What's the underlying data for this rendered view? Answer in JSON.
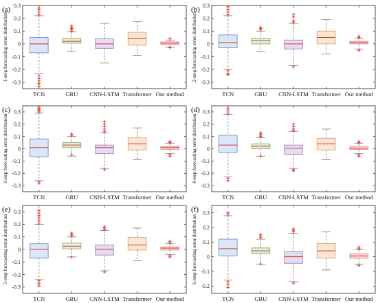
{
  "chart_data": [
    {
      "type": "box",
      "panel_label": "(a)",
      "ylabel": "1-step forecasting error distribution",
      "ylim": [
        -0.35,
        0.3
      ],
      "yticks": [
        -0.3,
        -0.2,
        -0.1,
        0,
        0.1,
        0.2,
        0.3
      ],
      "categories": [
        "TCN",
        "GRU",
        "CNN-LSTM",
        "Transformer",
        "Our method"
      ],
      "boxes": [
        {
          "category": "TCN",
          "whisker_low": -0.23,
          "q1": -0.07,
          "median": 0.0,
          "q3": 0.05,
          "whisker_high": 0.22,
          "outliers_low": [
            -0.25,
            -0.27,
            -0.29,
            -0.31,
            -0.33
          ],
          "outliers_high": [
            0.23,
            0.25,
            0.27,
            0.28
          ]
        },
        {
          "category": "GRU",
          "whisker_low": -0.06,
          "q1": 0.005,
          "median": 0.02,
          "q3": 0.045,
          "whisker_high": 0.095,
          "outliers_low": [],
          "outliers_high": [
            0.1,
            0.11,
            0.12,
            0.13,
            0.14
          ]
        },
        {
          "category": "CNN-LSTM",
          "whisker_low": -0.15,
          "q1": -0.035,
          "median": 0.0,
          "q3": 0.04,
          "whisker_high": 0.16,
          "outliers_low": [],
          "outliers_high": []
        },
        {
          "category": "Transformer",
          "whisker_low": -0.09,
          "q1": -0.01,
          "median": 0.04,
          "q3": 0.09,
          "whisker_high": 0.175,
          "outliers_low": [],
          "outliers_high": []
        },
        {
          "category": "Our method",
          "whisker_low": -0.025,
          "q1": -0.005,
          "median": 0.005,
          "q3": 0.015,
          "whisker_high": 0.03,
          "outliers_low": [
            -0.03
          ],
          "outliers_high": [
            0.04
          ]
        }
      ]
    },
    {
      "type": "box",
      "panel_label": "(b)",
      "ylabel": "2-step forecasting error distribution",
      "ylim": [
        -0.35,
        0.3
      ],
      "yticks": [
        -0.3,
        -0.2,
        -0.1,
        0,
        0.1,
        0.2,
        0.3
      ],
      "categories": [
        "TCN",
        "GRU",
        "CNN-LSTM",
        "Transformer",
        "Our method"
      ],
      "boxes": [
        {
          "category": "TCN",
          "whisker_low": -0.2,
          "q1": -0.03,
          "median": 0.01,
          "q3": 0.07,
          "whisker_high": 0.22,
          "outliers_low": [
            -0.21,
            -0.23,
            -0.24
          ],
          "outliers_high": [
            0.23,
            0.25,
            0.27,
            0.29
          ]
        },
        {
          "category": "GRU",
          "whisker_low": -0.06,
          "q1": 0.0,
          "median": 0.025,
          "q3": 0.045,
          "whisker_high": 0.1,
          "outliers_low": [],
          "outliers_high": [
            0.11,
            0.12,
            0.13
          ]
        },
        {
          "category": "CNN-LSTM",
          "whisker_low": -0.17,
          "q1": -0.04,
          "median": 0.0,
          "q3": 0.03,
          "whisker_high": 0.16,
          "outliers_low": [
            -0.18
          ],
          "outliers_high": [
            0.17,
            0.18,
            0.21,
            0.23
          ]
        },
        {
          "category": "Transformer",
          "whisker_low": -0.08,
          "q1": 0.0,
          "median": 0.05,
          "q3": 0.1,
          "whisker_high": 0.19,
          "outliers_low": [],
          "outliers_high": []
        },
        {
          "category": "Our method",
          "whisker_low": -0.04,
          "q1": 0.0,
          "median": 0.01,
          "q3": 0.02,
          "whisker_high": 0.045,
          "outliers_low": [
            -0.05
          ],
          "outliers_high": [
            0.05,
            0.06
          ]
        }
      ]
    },
    {
      "type": "box",
      "panel_label": "(c)",
      "ylabel": "3-step forecasting error distribution",
      "ylim": [
        -0.35,
        0.35
      ],
      "yticks": [
        -0.3,
        -0.2,
        -0.1,
        0,
        0.1,
        0.2,
        0.3
      ],
      "categories": [
        "TCN",
        "GRU",
        "CNN-LSTM",
        "Transformer",
        "Our method"
      ],
      "boxes": [
        {
          "category": "TCN",
          "whisker_low": -0.26,
          "q1": -0.065,
          "median": 0.01,
          "q3": 0.08,
          "whisker_high": 0.29,
          "outliers_low": [
            -0.27,
            -0.28
          ],
          "outliers_high": [
            0.3,
            0.31,
            0.32,
            0.33,
            0.34
          ]
        },
        {
          "category": "GRU",
          "whisker_low": -0.06,
          "q1": 0.01,
          "median": 0.03,
          "q3": 0.05,
          "whisker_high": 0.1,
          "outliers_low": [
            -0.05
          ],
          "outliers_high": [
            0.11,
            0.12
          ]
        },
        {
          "category": "CNN-LSTM",
          "whisker_low": -0.16,
          "q1": -0.04,
          "median": 0.01,
          "q3": 0.03,
          "whisker_high": 0.13,
          "outliers_low": [
            -0.17
          ],
          "outliers_high": [
            0.14,
            0.16,
            0.18,
            0.2,
            0.22
          ]
        },
        {
          "category": "Transformer",
          "whisker_low": -0.09,
          "q1": -0.01,
          "median": 0.04,
          "q3": 0.09,
          "whisker_high": 0.17,
          "outliers_low": [],
          "outliers_high": []
        },
        {
          "category": "Our method",
          "whisker_low": -0.04,
          "q1": -0.005,
          "median": 0.01,
          "q3": 0.02,
          "whisker_high": 0.045,
          "outliers_low": [
            -0.05,
            -0.06
          ],
          "outliers_high": [
            0.05,
            0.06
          ]
        }
      ]
    },
    {
      "type": "box",
      "panel_label": "(d)",
      "ylabel": "4-step forecasting error distribution",
      "ylim": [
        -0.35,
        0.35
      ],
      "yticks": [
        -0.3,
        -0.2,
        -0.1,
        0,
        0.1,
        0.2,
        0.3
      ],
      "categories": [
        "TCN",
        "GRU",
        "CNN-LSTM",
        "Transformer",
        "Our method"
      ],
      "boxes": [
        {
          "category": "TCN",
          "whisker_low": -0.23,
          "q1": -0.03,
          "median": 0.03,
          "q3": 0.11,
          "whisker_high": 0.28,
          "outliers_low": [
            -0.24,
            -0.26
          ],
          "outliers_high": [
            0.29,
            0.31,
            0.33
          ]
        },
        {
          "category": "GRU",
          "whisker_low": -0.06,
          "q1": 0.0,
          "median": 0.02,
          "q3": 0.04,
          "whisker_high": 0.09,
          "outliers_low": [
            -0.06
          ],
          "outliers_high": [
            0.1,
            0.11,
            0.12,
            0.13
          ]
        },
        {
          "category": "CNN-LSTM",
          "whisker_low": -0.16,
          "q1": -0.045,
          "median": 0.005,
          "q3": 0.03,
          "whisker_high": 0.14,
          "outliers_low": [
            -0.17,
            -0.18
          ],
          "outliers_high": [
            0.15,
            0.16,
            0.18,
            0.2
          ]
        },
        {
          "category": "Transformer",
          "whisker_low": -0.09,
          "q1": -0.01,
          "median": 0.04,
          "q3": 0.085,
          "whisker_high": 0.16,
          "outliers_low": [],
          "outliers_high": []
        },
        {
          "category": "Our method",
          "whisker_low": -0.04,
          "q1": -0.005,
          "median": 0.005,
          "q3": 0.02,
          "whisker_high": 0.045,
          "outliers_low": [
            -0.05,
            -0.06
          ],
          "outliers_high": [
            0.05,
            0.06
          ]
        }
      ]
    },
    {
      "type": "box",
      "panel_label": "(e)",
      "ylabel": "5-step forecasting error distribution",
      "ylim": [
        -0.35,
        0.35
      ],
      "yticks": [
        -0.3,
        -0.2,
        -0.1,
        0,
        0.1,
        0.2,
        0.3
      ],
      "categories": [
        "TCN",
        "GRU",
        "CNN-LSTM",
        "Transformer",
        "Our method"
      ],
      "boxes": [
        {
          "category": "TCN",
          "whisker_low": -0.24,
          "q1": -0.07,
          "median": 0.0,
          "q3": 0.045,
          "whisker_high": 0.2,
          "outliers_low": [
            -0.25,
            -0.27,
            -0.29
          ],
          "outliers_high": [
            0.21,
            0.23,
            0.25,
            0.27,
            0.29,
            0.31
          ]
        },
        {
          "category": "GRU",
          "whisker_low": -0.06,
          "q1": 0.005,
          "median": 0.025,
          "q3": 0.05,
          "whisker_high": 0.1,
          "outliers_low": [
            -0.06
          ],
          "outliers_high": [
            0.11,
            0.12,
            0.13
          ]
        },
        {
          "category": "CNN-LSTM",
          "whisker_low": -0.17,
          "q1": -0.045,
          "median": 0.0,
          "q3": 0.035,
          "whisker_high": 0.15,
          "outliers_low": [
            -0.18
          ],
          "outliers_high": [
            0.16,
            0.17,
            0.18
          ]
        },
        {
          "category": "Transformer",
          "whisker_low": -0.09,
          "q1": -0.005,
          "median": 0.035,
          "q3": 0.095,
          "whisker_high": 0.17,
          "outliers_low": [],
          "outliers_high": []
        },
        {
          "category": "Our method",
          "whisker_low": -0.04,
          "q1": -0.005,
          "median": 0.01,
          "q3": 0.02,
          "whisker_high": 0.045,
          "outliers_low": [
            -0.05,
            -0.06
          ],
          "outliers_high": [
            0.055,
            0.065
          ]
        }
      ]
    },
    {
      "type": "box",
      "panel_label": "(f)",
      "ylabel": "6-step forecasting error distribution",
      "ylim": [
        -0.25,
        0.35
      ],
      "yticks": [
        -0.2,
        -0.1,
        0,
        0.1,
        0.2,
        0.3
      ],
      "categories": [
        "TCN",
        "GRU",
        "CNN-LSTM",
        "Transformer",
        "Our method"
      ],
      "boxes": [
        {
          "category": "TCN",
          "whisker_low": -0.16,
          "q1": 0.005,
          "median": 0.055,
          "q3": 0.12,
          "whisker_high": 0.28,
          "outliers_low": [
            -0.17,
            -0.19,
            -0.21
          ],
          "outliers_high": [
            0.29,
            0.3
          ]
        },
        {
          "category": "GRU",
          "whisker_low": -0.05,
          "q1": 0.02,
          "median": 0.04,
          "q3": 0.06,
          "whisker_high": 0.12,
          "outliers_low": [
            -0.05
          ],
          "outliers_high": [
            0.13,
            0.14,
            0.15
          ]
        },
        {
          "category": "CNN-LSTM",
          "whisker_low": -0.17,
          "q1": -0.045,
          "median": 0.0,
          "q3": 0.035,
          "whisker_high": 0.16,
          "outliers_low": [
            -0.18
          ],
          "outliers_high": [
            0.17,
            0.18,
            0.19
          ]
        },
        {
          "category": "Transformer",
          "whisker_low": -0.09,
          "q1": -0.01,
          "median": 0.04,
          "q3": 0.09,
          "whisker_high": 0.17,
          "outliers_low": [],
          "outliers_high": []
        },
        {
          "category": "Our method",
          "whisker_low": -0.05,
          "q1": -0.01,
          "median": 0.005,
          "q3": 0.02,
          "whisker_high": 0.05,
          "outliers_low": [
            -0.06
          ],
          "outliers_high": [
            0.055,
            0.065
          ]
        }
      ]
    }
  ],
  "colors": {
    "box_fills": [
      "#dbe6f8",
      "#e2efd9",
      "#e6dcf2",
      "#fbe5d3",
      "#f8dcdc"
    ],
    "box_strokes": [
      "#6f8fc8",
      "#86ad70",
      "#9c85c4",
      "#d9a37a",
      "#d98c8c"
    ],
    "median": "#d9342b",
    "outlier": "#e83a2e",
    "whisker": "#777777",
    "axis": "#222222"
  }
}
